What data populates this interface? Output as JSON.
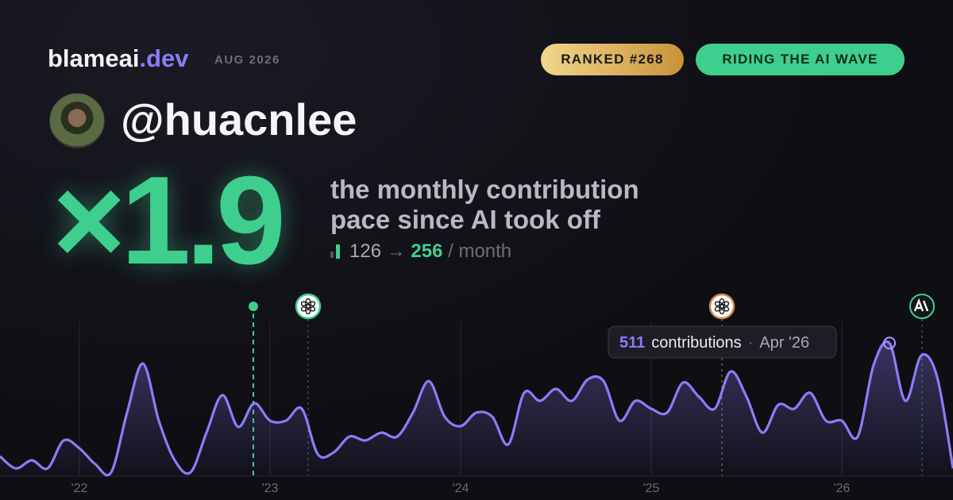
{
  "header": {
    "brand": "blameai",
    "brand_tld": ".dev",
    "date": "AUG 2026",
    "badges": [
      "RANKED #268",
      "RIDING THE AI WAVE"
    ]
  },
  "profile": {
    "username": "@huacnlee"
  },
  "stats": {
    "multiplier": "×1.9",
    "description": [
      "the monthly contribution",
      "pace since AI took off"
    ],
    "before": "126",
    "arrow": "→",
    "after": "256",
    "unit": "/ month"
  },
  "chart_data": {
    "type": "line",
    "categories": [
      null,
      null,
      null,
      null,
      null,
      "'22",
      null,
      null,
      null,
      null,
      null,
      null,
      null,
      null,
      null,
      null,
      null,
      "'23",
      null,
      null,
      null,
      null,
      null,
      null,
      null,
      null,
      null,
      null,
      null,
      "'24",
      null,
      null,
      null,
      null,
      null,
      null,
      null,
      null,
      null,
      null,
      null,
      "'25",
      null,
      null,
      null,
      null,
      null,
      null,
      null,
      null,
      null,
      null,
      null,
      "'26",
      null,
      null,
      null,
      null,
      null,
      null,
      null
    ],
    "series": [
      {
        "name": "contributions",
        "color": "#8b7cf6",
        "values": [
          76,
          30,
          61,
          30,
          137,
          107,
          46,
          15,
          244,
          432,
          213,
          61,
          15,
          167,
          311,
          189,
          280,
          213,
          213,
          259,
          85,
          91,
          152,
          137,
          167,
          152,
          244,
          365,
          228,
          192,
          244,
          228,
          122,
          320,
          289,
          335,
          289,
          371,
          365,
          213,
          289,
          259,
          244,
          359,
          305,
          259,
          402,
          305,
          167,
          274,
          259,
          320,
          213,
          213,
          152,
          426,
          511,
          289,
          463,
          381,
          30
        ]
      }
    ],
    "ylim": [
      0,
      600
    ],
    "grid": true,
    "highlight": {
      "index": 56,
      "text": "contributions",
      "separator": "·",
      "label": "Apr '26"
    },
    "events": [
      {
        "x": 15.95,
        "kind": "dot"
      },
      {
        "x": 19.4,
        "kind": "openai"
      },
      {
        "x": 45.45,
        "kind": "openai-orange"
      },
      {
        "x": 58.05,
        "kind": "anthropic"
      }
    ]
  }
}
